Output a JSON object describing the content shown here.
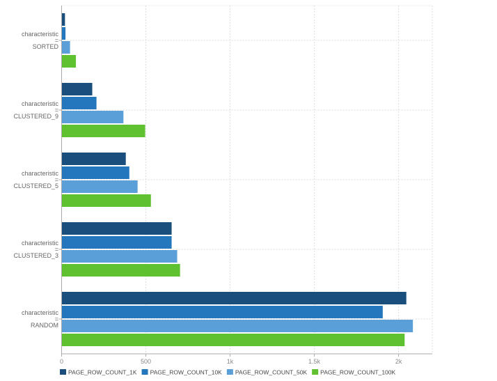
{
  "chart_data": {
    "type": "bar",
    "orientation": "horizontal",
    "categories": [
      "characteristic = SORTED",
      "characteristic = CLUSTERED_9",
      "characteristic = CLUSTERED_5",
      "characteristic = CLUSTERED_3",
      "characteristic = RANDOM"
    ],
    "category_prefix": "characteristic",
    "category_sep": "=",
    "category_values": [
      "SORTED",
      "CLUSTERED_9",
      "CLUSTERED_5",
      "CLUSTERED_3",
      "RANDOM"
    ],
    "series": [
      {
        "name": "PAGE_ROW_COUNT_1K",
        "color": "#1a4f7d",
        "values": [
          20,
          182,
          381,
          653,
          2046
        ]
      },
      {
        "name": "PAGE_ROW_COUNT_10K",
        "color": "#2577bd",
        "values": [
          23,
          207,
          402,
          653,
          1906
        ]
      },
      {
        "name": "PAGE_ROW_COUNT_50K",
        "color": "#5a9fd8",
        "values": [
          50,
          367,
          451,
          686,
          2085
        ]
      },
      {
        "name": "PAGE_ROW_COUNT_100K",
        "color": "#60c130",
        "values": [
          85,
          496,
          530,
          703,
          2036
        ]
      }
    ],
    "xlim": [
      0,
      2200
    ],
    "xticks": [
      0,
      500,
      1000,
      1500,
      2000
    ],
    "xtick_labels": [
      "0",
      "500",
      "1k",
      "1.5k",
      "2k"
    ],
    "grid": true,
    "legend": "bottom-left",
    "title": "",
    "xlabel": "",
    "ylabel": ""
  }
}
